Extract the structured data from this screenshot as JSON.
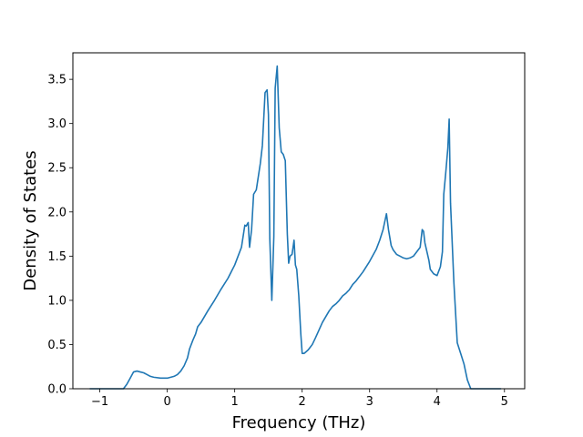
{
  "chart_data": {
    "type": "line",
    "title": "",
    "xlabel": "Frequency (THz)",
    "ylabel": "Density of States",
    "xlim": [
      -1.4,
      5.3
    ],
    "ylim": [
      0.0,
      3.8
    ],
    "xticks": [
      -1,
      0,
      1,
      2,
      3,
      4,
      5
    ],
    "xtick_labels": [
      "−1",
      "0",
      "1",
      "2",
      "3",
      "4",
      "5"
    ],
    "yticks": [
      0.0,
      0.5,
      1.0,
      1.5,
      2.0,
      2.5,
      3.0,
      3.5
    ],
    "ytick_labels": [
      "0.0",
      "0.5",
      "1.0",
      "1.5",
      "2.0",
      "2.5",
      "3.0",
      "3.5"
    ],
    "grid": false,
    "legend": "none",
    "line_color": "#1f77b4",
    "series": [
      {
        "x": [
          -1.15,
          -0.65,
          -0.6,
          -0.55,
          -0.5,
          -0.45,
          -0.4,
          -0.35,
          -0.3,
          -0.25,
          -0.2,
          -0.1,
          0.0,
          0.1,
          0.15,
          0.2,
          0.25,
          0.3,
          0.33,
          0.38,
          0.42,
          0.45,
          0.5,
          0.6,
          0.7,
          0.8,
          0.9,
          1.0,
          1.05,
          1.1,
          1.12,
          1.15,
          1.17,
          1.2,
          1.22,
          1.25,
          1.28,
          1.32,
          1.36,
          1.38,
          1.41,
          1.45,
          1.48,
          1.5,
          1.52,
          1.55,
          1.58,
          1.6,
          1.63,
          1.66,
          1.69,
          1.72,
          1.75,
          1.78,
          1.8,
          1.82,
          1.85,
          1.88,
          1.9,
          1.92,
          1.95,
          1.98,
          2.0,
          2.03,
          2.06,
          2.09,
          2.15,
          2.2,
          2.3,
          2.4,
          2.45,
          2.5,
          2.55,
          2.58,
          2.6,
          2.65,
          2.7,
          2.75,
          2.8,
          2.9,
          3.0,
          3.1,
          3.15,
          3.2,
          3.25,
          3.28,
          3.32,
          3.35,
          3.4,
          3.45,
          3.5,
          3.55,
          3.6,
          3.65,
          3.7,
          3.75,
          3.78,
          3.8,
          3.82,
          3.85,
          3.88,
          3.9,
          3.95,
          4.0,
          4.05,
          4.08,
          4.1,
          4.13,
          4.16,
          4.18,
          4.2,
          4.25,
          4.3,
          4.35,
          4.4,
          4.45,
          4.5,
          4.95
        ],
        "y": [
          0.0,
          0.0,
          0.05,
          0.12,
          0.19,
          0.2,
          0.19,
          0.18,
          0.16,
          0.14,
          0.13,
          0.12,
          0.12,
          0.14,
          0.16,
          0.2,
          0.26,
          0.35,
          0.45,
          0.55,
          0.62,
          0.7,
          0.75,
          0.88,
          1.0,
          1.13,
          1.25,
          1.4,
          1.5,
          1.6,
          1.7,
          1.85,
          1.84,
          1.88,
          1.6,
          1.8,
          2.2,
          2.25,
          2.45,
          2.55,
          2.75,
          3.35,
          3.38,
          3.1,
          1.7,
          1.0,
          1.72,
          3.4,
          3.65,
          2.95,
          2.68,
          2.65,
          2.58,
          1.75,
          1.42,
          1.5,
          1.52,
          1.68,
          1.4,
          1.35,
          1.05,
          0.62,
          0.4,
          0.4,
          0.42,
          0.44,
          0.5,
          0.58,
          0.75,
          0.88,
          0.93,
          0.96,
          1.0,
          1.03,
          1.05,
          1.08,
          1.12,
          1.18,
          1.22,
          1.32,
          1.44,
          1.58,
          1.68,
          1.8,
          1.98,
          1.8,
          1.62,
          1.57,
          1.52,
          1.5,
          1.48,
          1.47,
          1.48,
          1.5,
          1.55,
          1.6,
          1.8,
          1.78,
          1.65,
          1.55,
          1.45,
          1.35,
          1.3,
          1.28,
          1.38,
          1.55,
          2.2,
          2.45,
          2.72,
          3.05,
          2.1,
          1.2,
          0.52,
          0.4,
          0.28,
          0.1,
          0.0,
          0.0
        ]
      }
    ]
  }
}
